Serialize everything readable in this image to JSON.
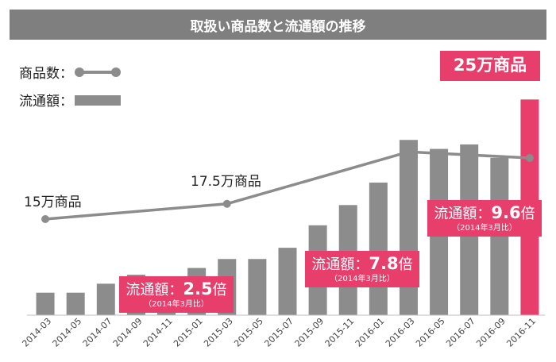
{
  "title": "取扱い商品数と流通額の推移",
  "legend": {
    "items_label": "商品数：",
    "gmv_label": "流通額："
  },
  "colors": {
    "bar": "#8c8c8c",
    "line": "#8c8c8c",
    "accent": "#e83e6c",
    "title_bg": "#7f7f7f"
  },
  "callouts": [
    {
      "id": "c1",
      "prefix": "流通額：",
      "value": "2.5",
      "suffix": "倍",
      "note": "（2014年3月比）"
    },
    {
      "id": "c2",
      "prefix": "流通額：",
      "value": "7.8",
      "suffix": "倍",
      "note": "（2014年3月比）"
    },
    {
      "id": "c3",
      "prefix": "流通額：",
      "value": "9.6",
      "suffix": "倍",
      "note": "（2014年3月比）"
    },
    {
      "id": "c4",
      "text": "25万商品"
    }
  ],
  "point_labels": [
    "15万商品",
    "17.5万商品"
  ],
  "chart_data": {
    "type": "bar",
    "categories": [
      "2014-03",
      "2014-05",
      "2014-07",
      "2014-09",
      "2014-11",
      "2015-01",
      "2015-03",
      "2015-05",
      "2015-07",
      "2015-09",
      "2015-11",
      "2016-01",
      "2016-03",
      "2016-05",
      "2016-07",
      "2016-09",
      "2016-11"
    ],
    "series": [
      {
        "name": "流通額",
        "type": "bar",
        "values": [
          1.0,
          1.0,
          1.4,
          1.8,
          1.7,
          2.1,
          2.5,
          2.5,
          3.0,
          4.0,
          4.9,
          5.9,
          7.8,
          7.4,
          7.6,
          7.0,
          9.6
        ],
        "highlight": [
          16
        ]
      },
      {
        "name": "商品数",
        "type": "line",
        "points": [
          {
            "x": "2014-03",
            "y": 15
          },
          {
            "x": "2015-03",
            "y": 17.5
          },
          {
            "x": "2016-03",
            "y": 26
          },
          {
            "x": "2016-11",
            "y": 25
          }
        ]
      }
    ]
  }
}
